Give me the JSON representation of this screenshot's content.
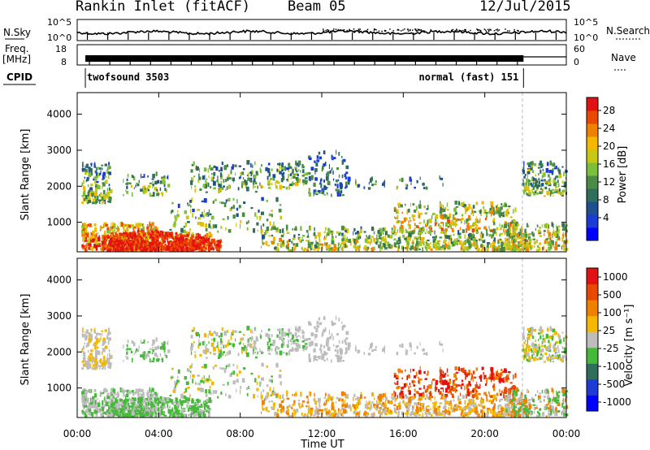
{
  "header": {
    "station": "Rankin Inlet (fitACF)",
    "beam": "Beam 05",
    "date": "12/Jul/2015"
  },
  "colors": {
    "power": [
      "#0000ff",
      "#1a3bd6",
      "#1f4f8f",
      "#2e6e5a",
      "#4a8b45",
      "#7bbf3a",
      "#c8c812",
      "#f4b800",
      "#f08000",
      "#e84800",
      "#e31212"
    ],
    "velocity": [
      "#0000ff",
      "#1e3bd6",
      "#2e6e5a",
      "#46b83a",
      "#bdbdbd",
      "#f4b800",
      "#f08000",
      "#e84800",
      "#e31212"
    ]
  },
  "chart_data": [
    {
      "type": "line",
      "panel": "sky-search-noise",
      "left_label": "N.Sky",
      "right_label": "N.Search",
      "ytick_left": [
        "10^5",
        "10^0"
      ],
      "ytick_right": [
        "10^5",
        "10^0"
      ]
    },
    {
      "type": "line",
      "panel": "freq-nave",
      "left_label_lines": [
        "Freq.",
        "[MHz]"
      ],
      "right_label": "Nave",
      "ytick_left": [
        "18",
        "8"
      ],
      "ytick_right": [
        "60",
        "0"
      ]
    },
    {
      "type": "table",
      "panel": "cpid",
      "label": "CPID",
      "segments": [
        {
          "label": "twofsound 3503",
          "start_h": 0.4,
          "end_h": 21.9
        },
        {
          "label": "normal (fast) 151",
          "start_h": 21.9,
          "end_h": 24
        }
      ]
    },
    {
      "type": "heatmap",
      "panel": "power",
      "ylabel": "Slant Range [km]",
      "yticks": [
        "1000",
        "2000",
        "3000",
        "4000"
      ],
      "ylim": [
        180,
        4600
      ],
      "colorbar_label": "Power [dB]",
      "colorbar_ticks": [
        "4",
        "8",
        "12",
        "16",
        "20",
        "24",
        "28"
      ],
      "colorbar_range": [
        0,
        30
      ]
    },
    {
      "type": "heatmap",
      "panel": "velocity",
      "ylabel": "Slant Range [km]",
      "yticks": [
        "1000",
        "2000",
        "3000",
        "4000"
      ],
      "ylim": [
        180,
        4600
      ],
      "colorbar_label": "Velocity [m s⁻¹]",
      "colorbar_ticks": [
        "1000",
        "500",
        "100",
        "25",
        "-25",
        "-100",
        "-500",
        "-1000"
      ]
    }
  ],
  "xaxis": {
    "label": "Time UT",
    "ticks": [
      "00:00",
      "04:00",
      "08:00",
      "12:00",
      "16:00",
      "20:00",
      "00:00"
    ],
    "range_h": [
      0,
      24
    ]
  }
}
